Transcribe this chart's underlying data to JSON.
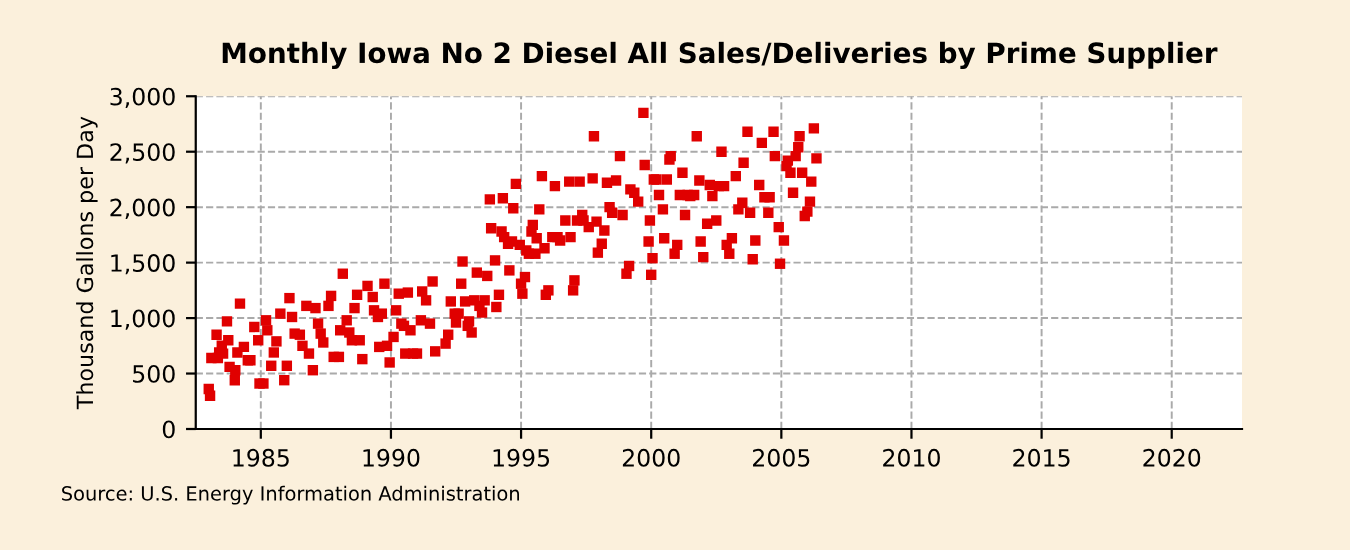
{
  "chart_data": {
    "type": "scatter",
    "title": "Monthly Iowa No 2 Diesel All Sales/Deliveries by Prime Supplier",
    "ylabel": "Thousand Gallons per Day",
    "annotations": [
      "Source: U.S. Energy Information Administration"
    ],
    "xlim": [
      1982.5,
      2022.7
    ],
    "xticks": [
      1985,
      1990,
      1995,
      2000,
      2005,
      2010,
      2015,
      2020
    ],
    "ylim": [
      0,
      3000
    ],
    "yticks": [
      {
        "value": 0,
        "label": "0"
      },
      {
        "value": 500,
        "label": "500"
      },
      {
        "value": 1000,
        "label": "1,000"
      },
      {
        "value": 1500,
        "label": "1,500"
      },
      {
        "value": 2000,
        "label": "2,000"
      },
      {
        "value": 2500,
        "label": "2,500"
      },
      {
        "value": 3000,
        "label": "3,000"
      }
    ],
    "grid": true,
    "marker": "square",
    "legend": false,
    "series": [
      {
        "color": "#e00000",
        "x": [
          1983.0,
          1983.05,
          1983.1,
          1983.3,
          1983.35,
          1983.4,
          1983.5,
          1983.55,
          1983.7,
          1983.75,
          1983.8,
          1984.0,
          1984.02,
          1984.1,
          1984.2,
          1984.35,
          1984.5,
          1984.6,
          1984.75,
          1984.9,
          1984.95,
          1985.1,
          1985.2,
          1985.25,
          1985.4,
          1985.5,
          1985.6,
          1985.75,
          1985.9,
          1986.0,
          1986.1,
          1986.2,
          1986.3,
          1986.5,
          1986.6,
          1986.75,
          1986.85,
          1987.0,
          1987.1,
          1987.2,
          1987.3,
          1987.4,
          1987.6,
          1987.7,
          1987.8,
          1988.0,
          1988.05,
          1988.15,
          1988.3,
          1988.4,
          1988.5,
          1988.6,
          1988.7,
          1988.8,
          1988.9,
          1989.1,
          1989.3,
          1989.35,
          1989.5,
          1989.55,
          1989.65,
          1989.75,
          1989.85,
          1989.95,
          1990.1,
          1990.2,
          1990.3,
          1990.4,
          1990.5,
          1990.55,
          1990.65,
          1990.75,
          1990.85,
          1991.0,
          1991.15,
          1991.2,
          1991.35,
          1991.5,
          1991.6,
          1991.7,
          1992.1,
          1992.2,
          1992.3,
          1992.45,
          1992.5,
          1992.6,
          1992.7,
          1992.75,
          1992.85,
          1992.95,
          1993.0,
          1993.1,
          1993.2,
          1993.3,
          1993.4,
          1993.5,
          1993.6,
          1993.7,
          1993.8,
          1993.85,
          1994.0,
          1994.05,
          1994.15,
          1994.25,
          1994.3,
          1994.35,
          1994.5,
          1994.55,
          1994.65,
          1994.7,
          1994.8,
          1994.95,
          1995.0,
          1995.05,
          1995.15,
          1995.2,
          1995.3,
          1995.4,
          1995.45,
          1995.55,
          1995.6,
          1995.7,
          1995.8,
          1995.9,
          1995.95,
          1996.05,
          1996.2,
          1996.3,
          1996.4,
          1996.5,
          1996.7,
          1996.85,
          1996.9,
          1997.0,
          1997.05,
          1997.15,
          1997.25,
          1997.35,
          1997.4,
          1997.6,
          1997.75,
          1997.8,
          1997.9,
          1997.95,
          1998.1,
          1998.2,
          1998.3,
          1998.4,
          1998.5,
          1998.65,
          1998.8,
          1998.9,
          1999.05,
          1999.15,
          1999.2,
          1999.35,
          1999.5,
          1999.7,
          1999.75,
          1999.9,
          1999.95,
          2000.0,
          2000.05,
          2000.1,
          2000.2,
          2000.3,
          2000.45,
          2000.5,
          2000.6,
          2000.7,
          2000.75,
          2000.9,
          2001.0,
          2001.1,
          2001.2,
          2001.3,
          2001.4,
          2001.5,
          2001.65,
          2001.75,
          2001.85,
          2001.9,
          2002.0,
          2002.15,
          2002.25,
          2002.35,
          2002.5,
          2002.6,
          2002.7,
          2002.8,
          2002.9,
          2003.0,
          2003.1,
          2003.25,
          2003.35,
          2003.5,
          2003.55,
          2003.7,
          2003.8,
          2003.9,
          2004.0,
          2004.15,
          2004.25,
          2004.35,
          2004.5,
          2004.55,
          2004.7,
          2004.75,
          2004.9,
          2004.95,
          2005.1,
          2005.2,
          2005.25,
          2005.35,
          2005.45,
          2005.55,
          2005.65,
          2005.7,
          2005.8,
          2005.9,
          2006.0,
          2006.1,
          2006.15,
          2006.25,
          2006.35
        ],
        "values": [
          360,
          300,
          640,
          850,
          640,
          690,
          750,
          680,
          970,
          800,
          560,
          440,
          530,
          690,
          1130,
          740,
          620,
          620,
          920,
          800,
          410,
          410,
          980,
          890,
          570,
          690,
          790,
          1040,
          440,
          570,
          1180,
          1010,
          860,
          850,
          750,
          1110,
          680,
          530,
          1090,
          950,
          860,
          780,
          1110,
          1200,
          650,
          650,
          890,
          1400,
          980,
          870,
          800,
          1090,
          1210,
          800,
          630,
          1290,
          1190,
          1070,
          1010,
          740,
          1040,
          1310,
          750,
          600,
          830,
          1070,
          1220,
          950,
          930,
          680,
          1230,
          890,
          680,
          680,
          980,
          1240,
          1160,
          950,
          1330,
          700,
          770,
          850,
          1150,
          1040,
          960,
          1040,
          1310,
          1510,
          1150,
          930,
          970,
          870,
          1160,
          1410,
          1110,
          1050,
          1160,
          1380,
          2070,
          1810,
          1520,
          1100,
          1210,
          1780,
          2080,
          1730,
          1670,
          1430,
          1690,
          1990,
          2210,
          1660,
          1310,
          1220,
          1370,
          1610,
          1580,
          1780,
          1840,
          1580,
          1720,
          1980,
          2280,
          1630,
          1210,
          1250,
          1730,
          2190,
          1730,
          1700,
          1880,
          2230,
          1730,
          1250,
          1340,
          1880,
          2230,
          1930,
          1880,
          1820,
          2260,
          2640,
          1870,
          1590,
          1670,
          1790,
          2220,
          2000,
          1950,
          2240,
          2460,
          1930,
          1400,
          1470,
          2160,
          2130,
          2050,
          2850,
          2380,
          1690,
          1880,
          1390,
          1540,
          2250,
          2250,
          2110,
          1980,
          1720,
          2250,
          2430,
          2460,
          1580,
          1660,
          2110,
          2310,
          1930,
          2110,
          2100,
          2110,
          2640,
          2240,
          1690,
          1550,
          1850,
          2200,
          2100,
          1880,
          2190,
          2500,
          2190,
          1660,
          1580,
          1720,
          2280,
          1980,
          2040,
          2400,
          2680,
          1950,
          1530,
          1700,
          2200,
          2580,
          2090,
          1950,
          2090,
          2680,
          2460,
          1820,
          1490,
          1700,
          2370,
          2420,
          2310,
          2130,
          2460,
          2540,
          2640,
          2310,
          1920,
          1960,
          2050,
          2230,
          2710,
          2440
        ]
      }
    ]
  }
}
